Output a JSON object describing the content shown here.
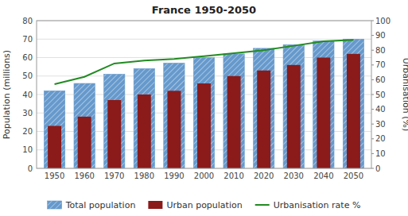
{
  "chart_data": {
    "type": "bar",
    "title": "France 1950-2050",
    "x": [
      1950,
      1960,
      1970,
      1980,
      1990,
      2000,
      2010,
      2020,
      2030,
      2040,
      2050
    ],
    "series": [
      {
        "name": "Total population",
        "color": "#6699cc",
        "values": [
          42,
          46,
          51,
          54,
          57,
          60,
          62,
          65,
          67,
          69,
          70
        ]
      },
      {
        "name": "Urban population",
        "color": "#8b1a1a",
        "values": [
          23,
          28,
          37,
          40,
          42,
          46,
          50,
          53,
          56,
          60,
          62
        ]
      },
      {
        "name": "Urbanisation rate %",
        "color": "#228b22",
        "type": "line",
        "axis": "y2",
        "values": [
          57,
          62,
          71,
          73,
          74,
          76,
          78,
          80,
          83,
          86,
          87
        ]
      }
    ],
    "xlim": [
      1944,
      2056
    ],
    "xticks": [
      1950,
      1960,
      1970,
      1980,
      1990,
      2000,
      2010,
      2020,
      2030,
      2040,
      2050
    ],
    "ylim": [
      0,
      80
    ],
    "yticks": [
      0,
      10,
      20,
      30,
      40,
      50,
      60,
      70,
      80
    ],
    "y2lim": [
      0,
      100
    ],
    "y2ticks": [
      0,
      10,
      20,
      30,
      40,
      50,
      60,
      70,
      80,
      90,
      100
    ],
    "ylabel": "Population (millions)",
    "y2label": "Urbanisation (%)",
    "grid": true,
    "legend": "bottom"
  }
}
